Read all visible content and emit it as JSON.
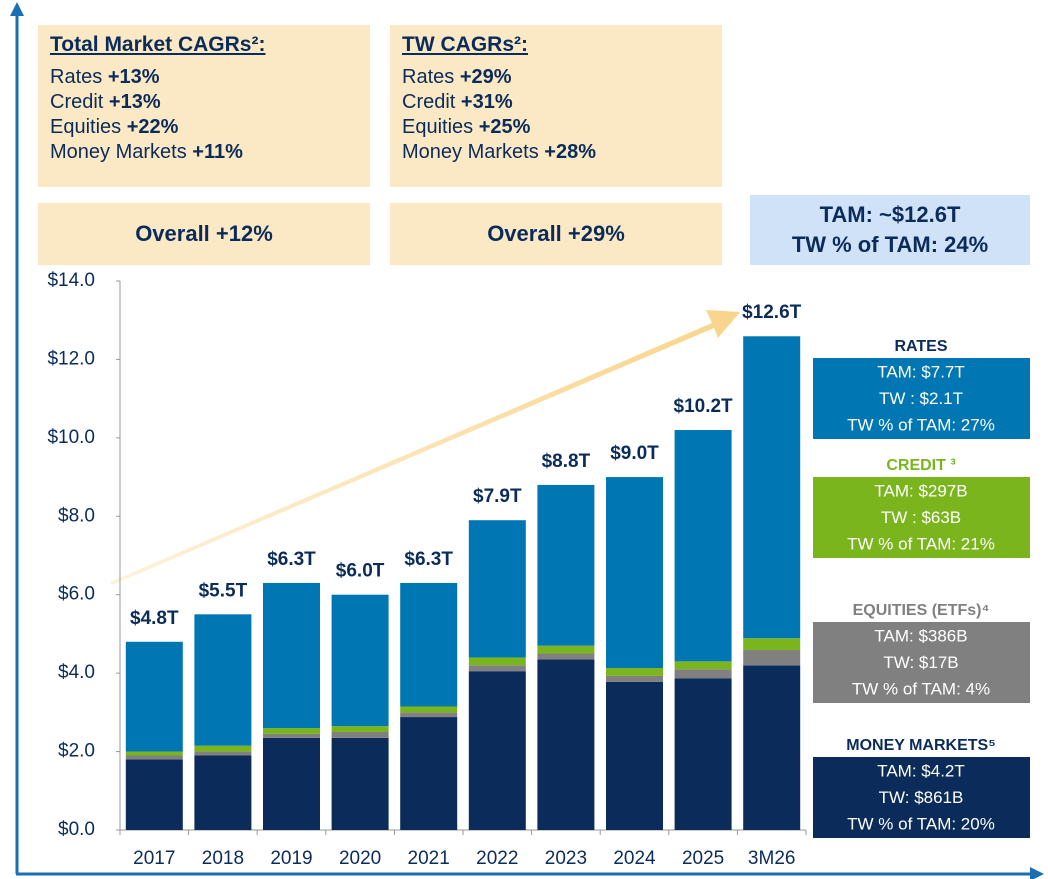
{
  "cagr_panels": [
    {
      "title": "Total Market CAGRs²:",
      "items": [
        {
          "label": "Rates",
          "value": "+13%"
        },
        {
          "label": "Credit",
          "value": "+13%"
        },
        {
          "label": "Equities",
          "value": "+22%"
        },
        {
          "label": "Money Markets",
          "value": "+11%"
        }
      ],
      "overall": "Overall +12%"
    },
    {
      "title": "TW CAGRs²:",
      "items": [
        {
          "label": "Rates",
          "value": "+29%"
        },
        {
          "label": "Credit",
          "value": "+31%"
        },
        {
          "label": "Equities",
          "value": "+25%"
        },
        {
          "label": "Money Markets",
          "value": "+28%"
        }
      ],
      "overall": "Overall +29%"
    }
  ],
  "tam_box": [
    "TAM: ~$12.6T",
    "TW % of TAM: 24%"
  ],
  "chart_data": {
    "type": "stacked_bar",
    "categories": [
      "2017",
      "2018",
      "2019",
      "2020",
      "2021",
      "2022",
      "2023",
      "2024",
      "2025",
      "3M26"
    ],
    "series": [
      {
        "name": "MONEY MARKETS⁵",
        "color": "#0b2c5a",
        "title_color": "#0b2c5a",
        "legend_lines": [
          "TAM: $4.2T",
          "TW: $861B",
          "TW % of TAM: 20%"
        ],
        "values": [
          1.8,
          1.9,
          2.35,
          2.35,
          2.88,
          4.05,
          4.35,
          3.78,
          3.87,
          4.2
        ]
      },
      {
        "name": "EQUITIES (ETFs)⁴",
        "color": "#808080",
        "title_color": "#808080",
        "legend_lines": [
          "TAM: $386B",
          "TW: $17B",
          "TW % of TAM: 4%"
        ],
        "values": [
          0.1,
          0.1,
          0.1,
          0.15,
          0.12,
          0.15,
          0.15,
          0.15,
          0.23,
          0.39
        ]
      },
      {
        "name": "CREDIT ³",
        "color": "#7ab51d",
        "title_color": "#7ab51d",
        "legend_lines": [
          "TAM: $297B",
          "TW : $63B",
          "TW % of TAM: 21%"
        ],
        "values": [
          0.1,
          0.15,
          0.15,
          0.15,
          0.15,
          0.2,
          0.2,
          0.2,
          0.2,
          0.3
        ]
      },
      {
        "name": "RATES",
        "color": "#0077b3",
        "title_color": "#0b2c5a",
        "legend_lines": [
          "TAM: $7.7T",
          "TW : $2.1T",
          "TW % of TAM: 27%"
        ],
        "values": [
          2.8,
          3.35,
          3.7,
          3.35,
          3.15,
          3.5,
          4.1,
          4.87,
          5.9,
          7.7
        ]
      }
    ],
    "totals": {
      "values": [
        4.8,
        5.5,
        6.3,
        6.0,
        6.3,
        7.9,
        8.8,
        9.0,
        10.2,
        12.6
      ],
      "value_labels": [
        "$4.8T",
        "$5.5T",
        "$6.3T",
        "$6.0T",
        "$6.3T",
        "$7.9T",
        "$8.8T",
        "$9.0T",
        "$10.2T",
        "$12.6T"
      ]
    },
    "ylim": [
      0,
      14
    ],
    "yticks": [
      {
        "value": 0,
        "label": "$0.0"
      },
      {
        "value": 2,
        "label": "$2.0"
      },
      {
        "value": 4,
        "label": "$4.0"
      },
      {
        "value": 6,
        "label": "$6.0"
      },
      {
        "value": 8,
        "label": "$8.0"
      },
      {
        "value": 10,
        "label": "$10.0"
      },
      {
        "value": 12,
        "label": "$12.0"
      },
      {
        "value": 14,
        "label": "$14.0"
      }
    ]
  }
}
